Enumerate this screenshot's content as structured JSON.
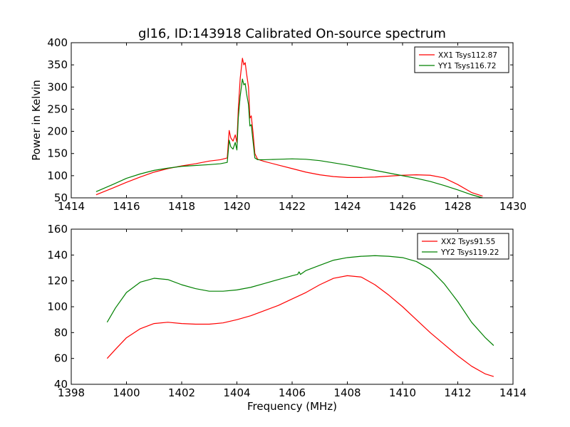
{
  "title": "gl16, ID:143918 Calibrated On-source spectrum",
  "chart_data": [
    {
      "type": "line",
      "xlabel": "",
      "ylabel": "Power in Kelvin",
      "xlim": [
        1414,
        1430
      ],
      "ylim": [
        50,
        400
      ],
      "xticks": [
        1414,
        1416,
        1418,
        1420,
        1422,
        1424,
        1426,
        1428,
        1430
      ],
      "yticks": [
        50,
        100,
        150,
        200,
        250,
        300,
        350,
        400
      ],
      "legend_position": "top-right",
      "series": [
        {
          "name": "XX1 Tsys112.87",
          "color": "#ff0000",
          "x": [
            1414.9,
            1415.5,
            1416,
            1416.5,
            1417,
            1417.5,
            1418,
            1418.5,
            1419,
            1419.4,
            1419.65,
            1419.72,
            1419.78,
            1419.86,
            1419.94,
            1420.0,
            1420.05,
            1420.12,
            1420.2,
            1420.25,
            1420.3,
            1420.35,
            1420.42,
            1420.47,
            1420.52,
            1420.58,
            1420.65,
            1420.75,
            1421,
            1421.5,
            1422,
            1422.5,
            1423,
            1423.5,
            1424,
            1424.5,
            1425,
            1425.5,
            1426,
            1426.5,
            1427,
            1427.5,
            1428,
            1428.5,
            1428.9
          ],
          "values": [
            57,
            72,
            85,
            97,
            108,
            116,
            122,
            127,
            133,
            136,
            140,
            202,
            185,
            178,
            192,
            175,
            250,
            320,
            365,
            350,
            355,
            330,
            300,
            230,
            235,
            200,
            150,
            137,
            132,
            124,
            116,
            108,
            102,
            98,
            96,
            96,
            97,
            99,
            101,
            102,
            101,
            95,
            80,
            62,
            54
          ]
        },
        {
          "name": "YY1 Tsys116.72",
          "color": "#008000",
          "x": [
            1414.9,
            1415.5,
            1416,
            1416.5,
            1417,
            1417.5,
            1418,
            1418.5,
            1419,
            1419.4,
            1419.65,
            1419.72,
            1419.78,
            1419.86,
            1419.94,
            1420.0,
            1420.05,
            1420.12,
            1420.2,
            1420.25,
            1420.3,
            1420.35,
            1420.42,
            1420.47,
            1420.52,
            1420.58,
            1420.65,
            1420.75,
            1421,
            1421.5,
            1422,
            1422.5,
            1423,
            1423.5,
            1424,
            1424.5,
            1425,
            1425.5,
            1426,
            1426.5,
            1427,
            1427.5,
            1428,
            1428.5,
            1428.9
          ],
          "values": [
            64,
            80,
            94,
            104,
            112,
            117,
            121,
            123,
            125,
            127,
            130,
            180,
            165,
            160,
            175,
            158,
            230,
            280,
            318,
            305,
            308,
            285,
            260,
            212,
            215,
            180,
            140,
            136,
            136,
            137,
            138,
            137,
            134,
            129,
            124,
            118,
            112,
            106,
            100,
            94,
            87,
            78,
            68,
            57,
            50
          ]
        }
      ]
    },
    {
      "type": "line",
      "xlabel": "Frequency (MHz)",
      "ylabel": "",
      "xlim": [
        1398,
        1414
      ],
      "ylim": [
        40,
        160
      ],
      "xticks": [
        1398,
        1400,
        1402,
        1404,
        1406,
        1408,
        1410,
        1412,
        1414
      ],
      "yticks": [
        40,
        60,
        80,
        100,
        120,
        140,
        160
      ],
      "legend_position": "top-right",
      "series": [
        {
          "name": "XX2 Tsys91.55",
          "color": "#ff0000",
          "x": [
            1399.3,
            1399.6,
            1400,
            1400.5,
            1401,
            1401.5,
            1402,
            1402.5,
            1403,
            1403.5,
            1404,
            1404.5,
            1405,
            1405.5,
            1406,
            1406.5,
            1407,
            1407.5,
            1408,
            1408.5,
            1409,
            1409.5,
            1410,
            1410.5,
            1411,
            1411.5,
            1412,
            1412.5,
            1413,
            1413.3
          ],
          "values": [
            60,
            67,
            76,
            83,
            87,
            88,
            87,
            86.5,
            86.5,
            87.5,
            90,
            93,
            97,
            101,
            106,
            111,
            117,
            122,
            124,
            123,
            117,
            109,
            100,
            90,
            80,
            71,
            62,
            54,
            48,
            46
          ]
        },
        {
          "name": "YY2 Tsys119.22",
          "color": "#008000",
          "x": [
            1399.3,
            1399.6,
            1400,
            1400.5,
            1401,
            1401.5,
            1402,
            1402.5,
            1403,
            1403.5,
            1404,
            1404.5,
            1405,
            1405.5,
            1406,
            1406.2,
            1406.25,
            1406.3,
            1406.5,
            1407,
            1407.5,
            1408,
            1408.5,
            1409,
            1409.5,
            1410,
            1410.5,
            1411,
            1411.5,
            1412,
            1412.5,
            1413,
            1413.3
          ],
          "values": [
            88,
            99,
            111,
            119,
            122,
            121,
            117,
            114,
            112,
            112,
            113,
            115,
            118,
            121,
            124,
            125,
            127,
            125,
            128,
            132,
            136,
            138,
            139,
            139.5,
            139,
            138,
            135,
            129,
            118,
            104,
            88,
            76,
            70
          ]
        }
      ]
    }
  ]
}
